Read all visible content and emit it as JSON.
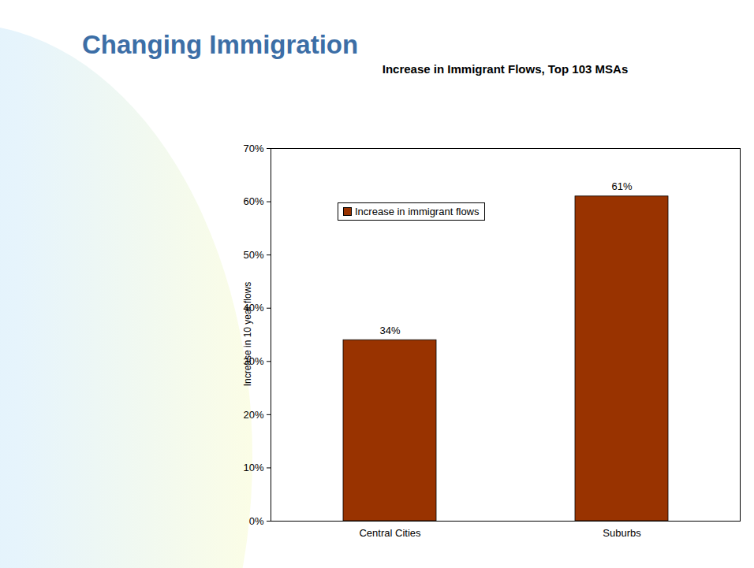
{
  "heading": "Changing Immigration",
  "chart_data": {
    "type": "bar",
    "title": "Increase in Immigrant Flows, Top 103 MSAs",
    "y_label": "Increase in 10 year flows",
    "categories": [
      "Central Cities",
      "Suburbs"
    ],
    "series": [
      {
        "name": "Increase in immigrant flows",
        "color": "#993300",
        "values": [
          34,
          61
        ],
        "value_labels": [
          "34%",
          "61%"
        ]
      }
    ],
    "ylim": [
      0,
      70
    ],
    "yticks": [
      {
        "value": 0,
        "label": "0%"
      },
      {
        "value": 10,
        "label": "10%"
      },
      {
        "value": 20,
        "label": "20%"
      },
      {
        "value": 30,
        "label": "30%"
      },
      {
        "value": 40,
        "label": "40%"
      },
      {
        "value": 50,
        "label": "50%"
      },
      {
        "value": 60,
        "label": "60%"
      },
      {
        "value": 70,
        "label": "70%"
      }
    ],
    "grid": false,
    "data_labels": true,
    "legend": "upper left"
  }
}
